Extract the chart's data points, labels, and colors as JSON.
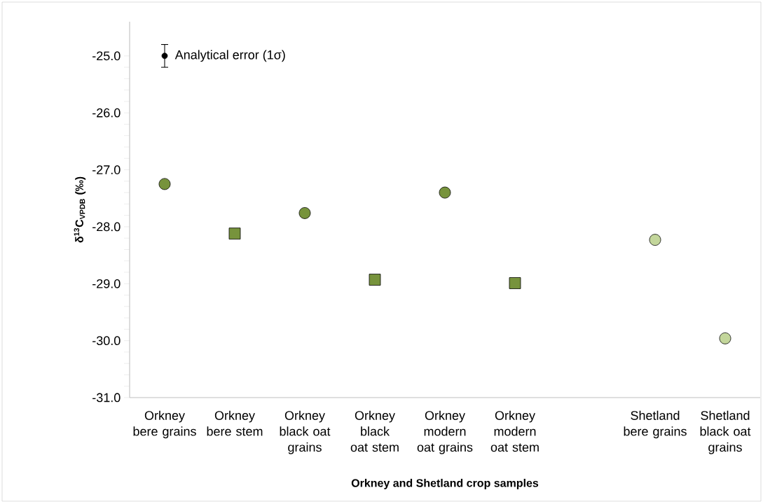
{
  "chart_data": {
    "type": "scatter",
    "xlabel": "Orkney and Shetland crop samples",
    "ylabel": "δ$^{13}$C$_{VPDB}$ (‰)",
    "categories": [
      "Orkney bere grains",
      "Orkney bere stem",
      "Orkney black oat grains",
      "Orkney black oat stem",
      "Orkney modern oat grains",
      "Orkney modern oat stem",
      null,
      "Shetland bere grains",
      "Shetland black oat grains"
    ],
    "series": [
      {
        "color": "#000000",
        "marker": "circle",
        "values": [
          -25.0,
          null,
          null,
          null,
          null,
          null,
          null,
          null,
          null
        ],
        "errors": [
          0.2,
          null,
          null,
          null,
          null,
          null,
          null,
          null,
          null
        ]
      },
      {
        "color": "#77933c",
        "marker": "circle",
        "values": [
          -27.25,
          null,
          -27.76,
          null,
          -27.4,
          null,
          null,
          null,
          null
        ]
      },
      {
        "color": "#77933c",
        "marker": "square",
        "values": [
          null,
          -28.12,
          null,
          -28.93,
          null,
          -28.99,
          null,
          null,
          null
        ]
      },
      {
        "color": "#c3d69b",
        "marker": "circle",
        "values": [
          null,
          null,
          null,
          null,
          null,
          null,
          null,
          -28.23,
          -29.96
        ]
      }
    ],
    "annotations": [
      {
        "text": "Analytical error (1σ)",
        "x": "Orkney bere grains",
        "y": -25.0
      }
    ],
    "ylim": [
      -31.0,
      -24.4
    ],
    "yticks": [
      {
        "value": -31,
        "label": "-31.0"
      },
      {
        "value": -30,
        "label": "-30.0"
      },
      {
        "value": -29,
        "label": "-29.0"
      },
      {
        "value": -28,
        "label": "-28.0"
      },
      {
        "value": -27,
        "label": "-27.0"
      },
      {
        "value": -26,
        "label": "-26.0"
      },
      {
        "value": -25,
        "label": "-25.0"
      }
    ],
    "grid": false
  }
}
